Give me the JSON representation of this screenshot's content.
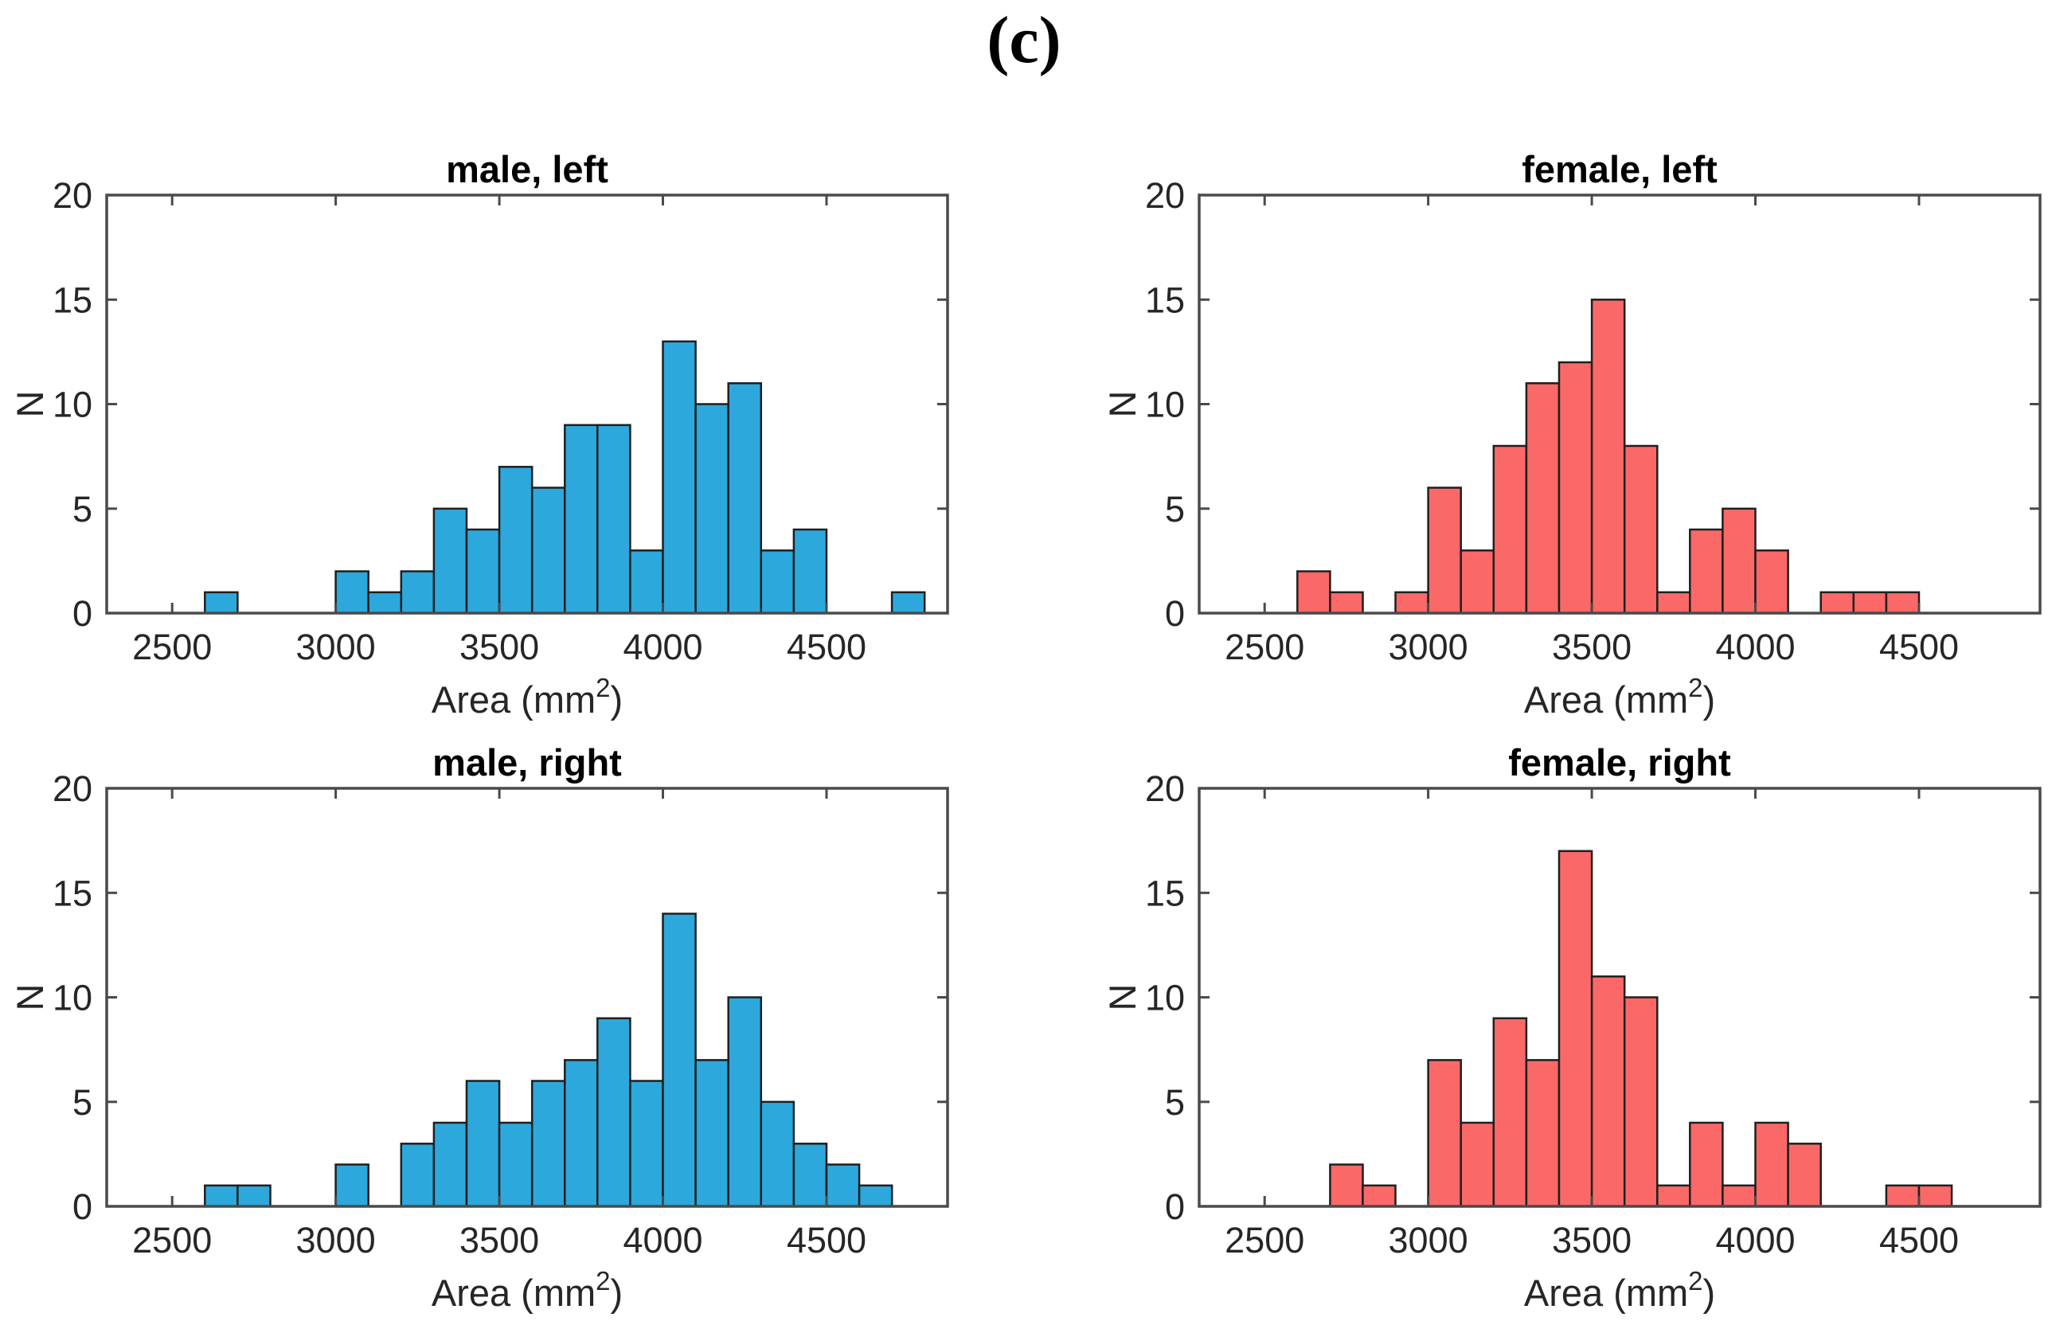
{
  "figure_label": "(c)",
  "chart_data": [
    {
      "type": "bar",
      "subtype": "histogram",
      "id": "male-left",
      "title": "male, left",
      "xlabel": "Area (mm²)",
      "ylabel": "N",
      "bar_color": "#2DA8DC",
      "bar_edge_color": "#1f1f1f",
      "axis_color": "#4a4a4a",
      "xlim": [
        2300,
        4870
      ],
      "ylim": [
        0,
        20
      ],
      "x_ticks": [
        2500,
        3000,
        3500,
        4000,
        4500
      ],
      "y_ticks": [
        0,
        5,
        10,
        15,
        20
      ],
      "grid": "off",
      "legend": "none",
      "bin_width": 100,
      "bins": [
        {
          "x0": 2600,
          "n": 1
        },
        {
          "x0": 3000,
          "n": 2
        },
        {
          "x0": 3100,
          "n": 1
        },
        {
          "x0": 3200,
          "n": 2
        },
        {
          "x0": 3300,
          "n": 5
        },
        {
          "x0": 3400,
          "n": 4
        },
        {
          "x0": 3500,
          "n": 7
        },
        {
          "x0": 3600,
          "n": 6
        },
        {
          "x0": 3700,
          "n": 9
        },
        {
          "x0": 3800,
          "n": 9
        },
        {
          "x0": 3900,
          "n": 3
        },
        {
          "x0": 4000,
          "n": 13
        },
        {
          "x0": 4100,
          "n": 10
        },
        {
          "x0": 4200,
          "n": 11
        },
        {
          "x0": 4300,
          "n": 3
        },
        {
          "x0": 4400,
          "n": 4
        },
        {
          "x0": 4700,
          "n": 1
        }
      ]
    },
    {
      "type": "bar",
      "subtype": "histogram",
      "id": "female-left",
      "title": "female, left",
      "xlabel": "Area (mm²)",
      "ylabel": "N",
      "bar_color": "#FB6868",
      "bar_edge_color": "#1f1f1f",
      "axis_color": "#4a4a4a",
      "xlim": [
        2300,
        4870
      ],
      "ylim": [
        0,
        20
      ],
      "x_ticks": [
        2500,
        3000,
        3500,
        4000,
        4500
      ],
      "y_ticks": [
        0,
        5,
        10,
        15,
        20
      ],
      "grid": "off",
      "legend": "none",
      "bin_width": 100,
      "bins": [
        {
          "x0": 2600,
          "n": 2
        },
        {
          "x0": 2700,
          "n": 1
        },
        {
          "x0": 2900,
          "n": 1
        },
        {
          "x0": 3000,
          "n": 6
        },
        {
          "x0": 3100,
          "n": 3
        },
        {
          "x0": 3200,
          "n": 8
        },
        {
          "x0": 3300,
          "n": 11
        },
        {
          "x0": 3400,
          "n": 12
        },
        {
          "x0": 3500,
          "n": 15
        },
        {
          "x0": 3600,
          "n": 8
        },
        {
          "x0": 3700,
          "n": 1
        },
        {
          "x0": 3800,
          "n": 4
        },
        {
          "x0": 3900,
          "n": 5
        },
        {
          "x0": 4000,
          "n": 3
        },
        {
          "x0": 4200,
          "n": 1
        },
        {
          "x0": 4300,
          "n": 1
        },
        {
          "x0": 4400,
          "n": 1
        }
      ]
    },
    {
      "type": "bar",
      "subtype": "histogram",
      "id": "male-right",
      "title": "male, right",
      "xlabel": "Area (mm²)",
      "ylabel": "N",
      "bar_color": "#2DA8DC",
      "bar_edge_color": "#1f1f1f",
      "axis_color": "#4a4a4a",
      "xlim": [
        2300,
        4870
      ],
      "ylim": [
        0,
        20
      ],
      "x_ticks": [
        2500,
        3000,
        3500,
        4000,
        4500
      ],
      "y_ticks": [
        0,
        5,
        10,
        15,
        20
      ],
      "grid": "off",
      "legend": "none",
      "bin_width": 100,
      "bins": [
        {
          "x0": 2600,
          "n": 1
        },
        {
          "x0": 2700,
          "n": 1
        },
        {
          "x0": 3000,
          "n": 2
        },
        {
          "x0": 3200,
          "n": 3
        },
        {
          "x0": 3300,
          "n": 4
        },
        {
          "x0": 3400,
          "n": 6
        },
        {
          "x0": 3500,
          "n": 4
        },
        {
          "x0": 3600,
          "n": 6
        },
        {
          "x0": 3700,
          "n": 7
        },
        {
          "x0": 3800,
          "n": 9
        },
        {
          "x0": 3900,
          "n": 6
        },
        {
          "x0": 4000,
          "n": 14
        },
        {
          "x0": 4100,
          "n": 7
        },
        {
          "x0": 4200,
          "n": 10
        },
        {
          "x0": 4300,
          "n": 5
        },
        {
          "x0": 4400,
          "n": 3
        },
        {
          "x0": 4500,
          "n": 2
        },
        {
          "x0": 4600,
          "n": 1
        }
      ]
    },
    {
      "type": "bar",
      "subtype": "histogram",
      "id": "female-right",
      "title": "female, right",
      "xlabel": "Area (mm²)",
      "ylabel": "N",
      "bar_color": "#FB6868",
      "bar_edge_color": "#1f1f1f",
      "axis_color": "#4a4a4a",
      "xlim": [
        2300,
        4870
      ],
      "ylim": [
        0,
        20
      ],
      "x_ticks": [
        2500,
        3000,
        3500,
        4000,
        4500
      ],
      "y_ticks": [
        0,
        5,
        10,
        15,
        20
      ],
      "grid": "off",
      "legend": "none",
      "bin_width": 100,
      "bins": [
        {
          "x0": 2700,
          "n": 2
        },
        {
          "x0": 2800,
          "n": 1
        },
        {
          "x0": 3000,
          "n": 7
        },
        {
          "x0": 3100,
          "n": 4
        },
        {
          "x0": 3200,
          "n": 9
        },
        {
          "x0": 3300,
          "n": 7
        },
        {
          "x0": 3400,
          "n": 17
        },
        {
          "x0": 3500,
          "n": 11
        },
        {
          "x0": 3600,
          "n": 10
        },
        {
          "x0": 3700,
          "n": 1
        },
        {
          "x0": 3800,
          "n": 4
        },
        {
          "x0": 3900,
          "n": 1
        },
        {
          "x0": 4000,
          "n": 4
        },
        {
          "x0": 4100,
          "n": 3
        },
        {
          "x0": 4400,
          "n": 1
        },
        {
          "x0": 4500,
          "n": 1
        }
      ]
    }
  ]
}
